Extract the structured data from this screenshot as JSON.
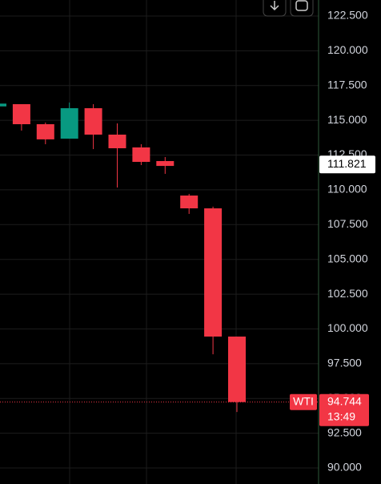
{
  "chart_data": {
    "type": "candlestick",
    "symbol": "WTI",
    "categories": [
      null,
      null,
      null,
      null,
      null,
      null,
      null,
      null,
      null,
      null,
      null
    ],
    "series": [
      {
        "name": "WTI",
        "up_color": "#089981",
        "down_color": "#f23645",
        "open": [
          116.0,
          116.16,
          114.72,
          113.68,
          115.87,
          113.97,
          113.05,
          112.07,
          109.59,
          108.67,
          99.45
        ],
        "high": [
          116.2,
          116.16,
          114.84,
          116.28,
          116.16,
          114.78,
          113.28,
          112.36,
          109.71,
          108.79,
          99.45
        ],
        "low": [
          116.0,
          114.26,
          113.28,
          113.68,
          112.93,
          110.17,
          111.78,
          111.15,
          108.27,
          98.18,
          94.03
        ],
        "close": [
          116.2,
          114.72,
          113.63,
          115.87,
          113.97,
          112.99,
          112.01,
          111.72,
          108.67,
          99.45,
          94.744
        ]
      }
    ],
    "ylim": [
      88.85,
      123.65
    ],
    "yticks": [
      {
        "value": 122.5,
        "label": "122.500"
      },
      {
        "value": 120,
        "label": "120.000"
      },
      {
        "value": 117.5,
        "label": "117.500"
      },
      {
        "value": 115,
        "label": "115.000"
      },
      {
        "value": 112.5,
        "label": "112.500"
      },
      {
        "value": 110,
        "label": "110.000"
      },
      {
        "value": 107.5,
        "label": "107.500"
      },
      {
        "value": 105,
        "label": "105.000"
      },
      {
        "value": 102.5,
        "label": "102.500"
      },
      {
        "value": 100,
        "label": "100.000"
      },
      {
        "value": 97.5,
        "label": "97.500"
      },
      {
        "value": 95,
        "label": "95.000"
      },
      {
        "value": 92.5,
        "label": "92.500"
      },
      {
        "value": 90,
        "label": "90.000"
      }
    ],
    "last_price": 94.744,
    "countdown": "13:49",
    "crosshair_price": 111.821,
    "grid": true
  }
}
